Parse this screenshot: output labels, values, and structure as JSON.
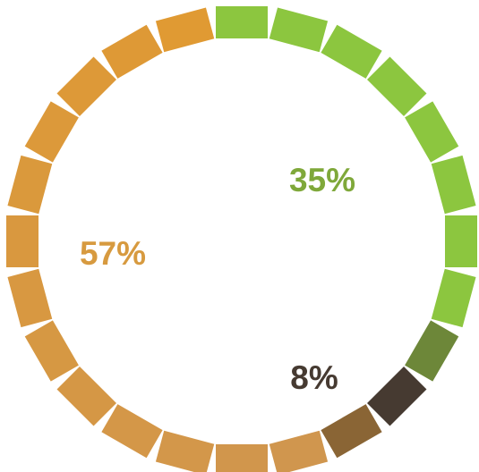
{
  "chart_data": {
    "type": "pie",
    "style": "segmented-ring",
    "slices": [
      {
        "label": "35%",
        "value": 35,
        "color": "#8cc63f"
      },
      {
        "label": "8%",
        "value": 8,
        "color": "#463a31"
      },
      {
        "label": "57%",
        "value": 57,
        "color": "#dc9a3a"
      }
    ],
    "segment_count": 24,
    "start_angle_deg": 0,
    "direction": "clockwise",
    "legend": "none",
    "grid": false
  }
}
